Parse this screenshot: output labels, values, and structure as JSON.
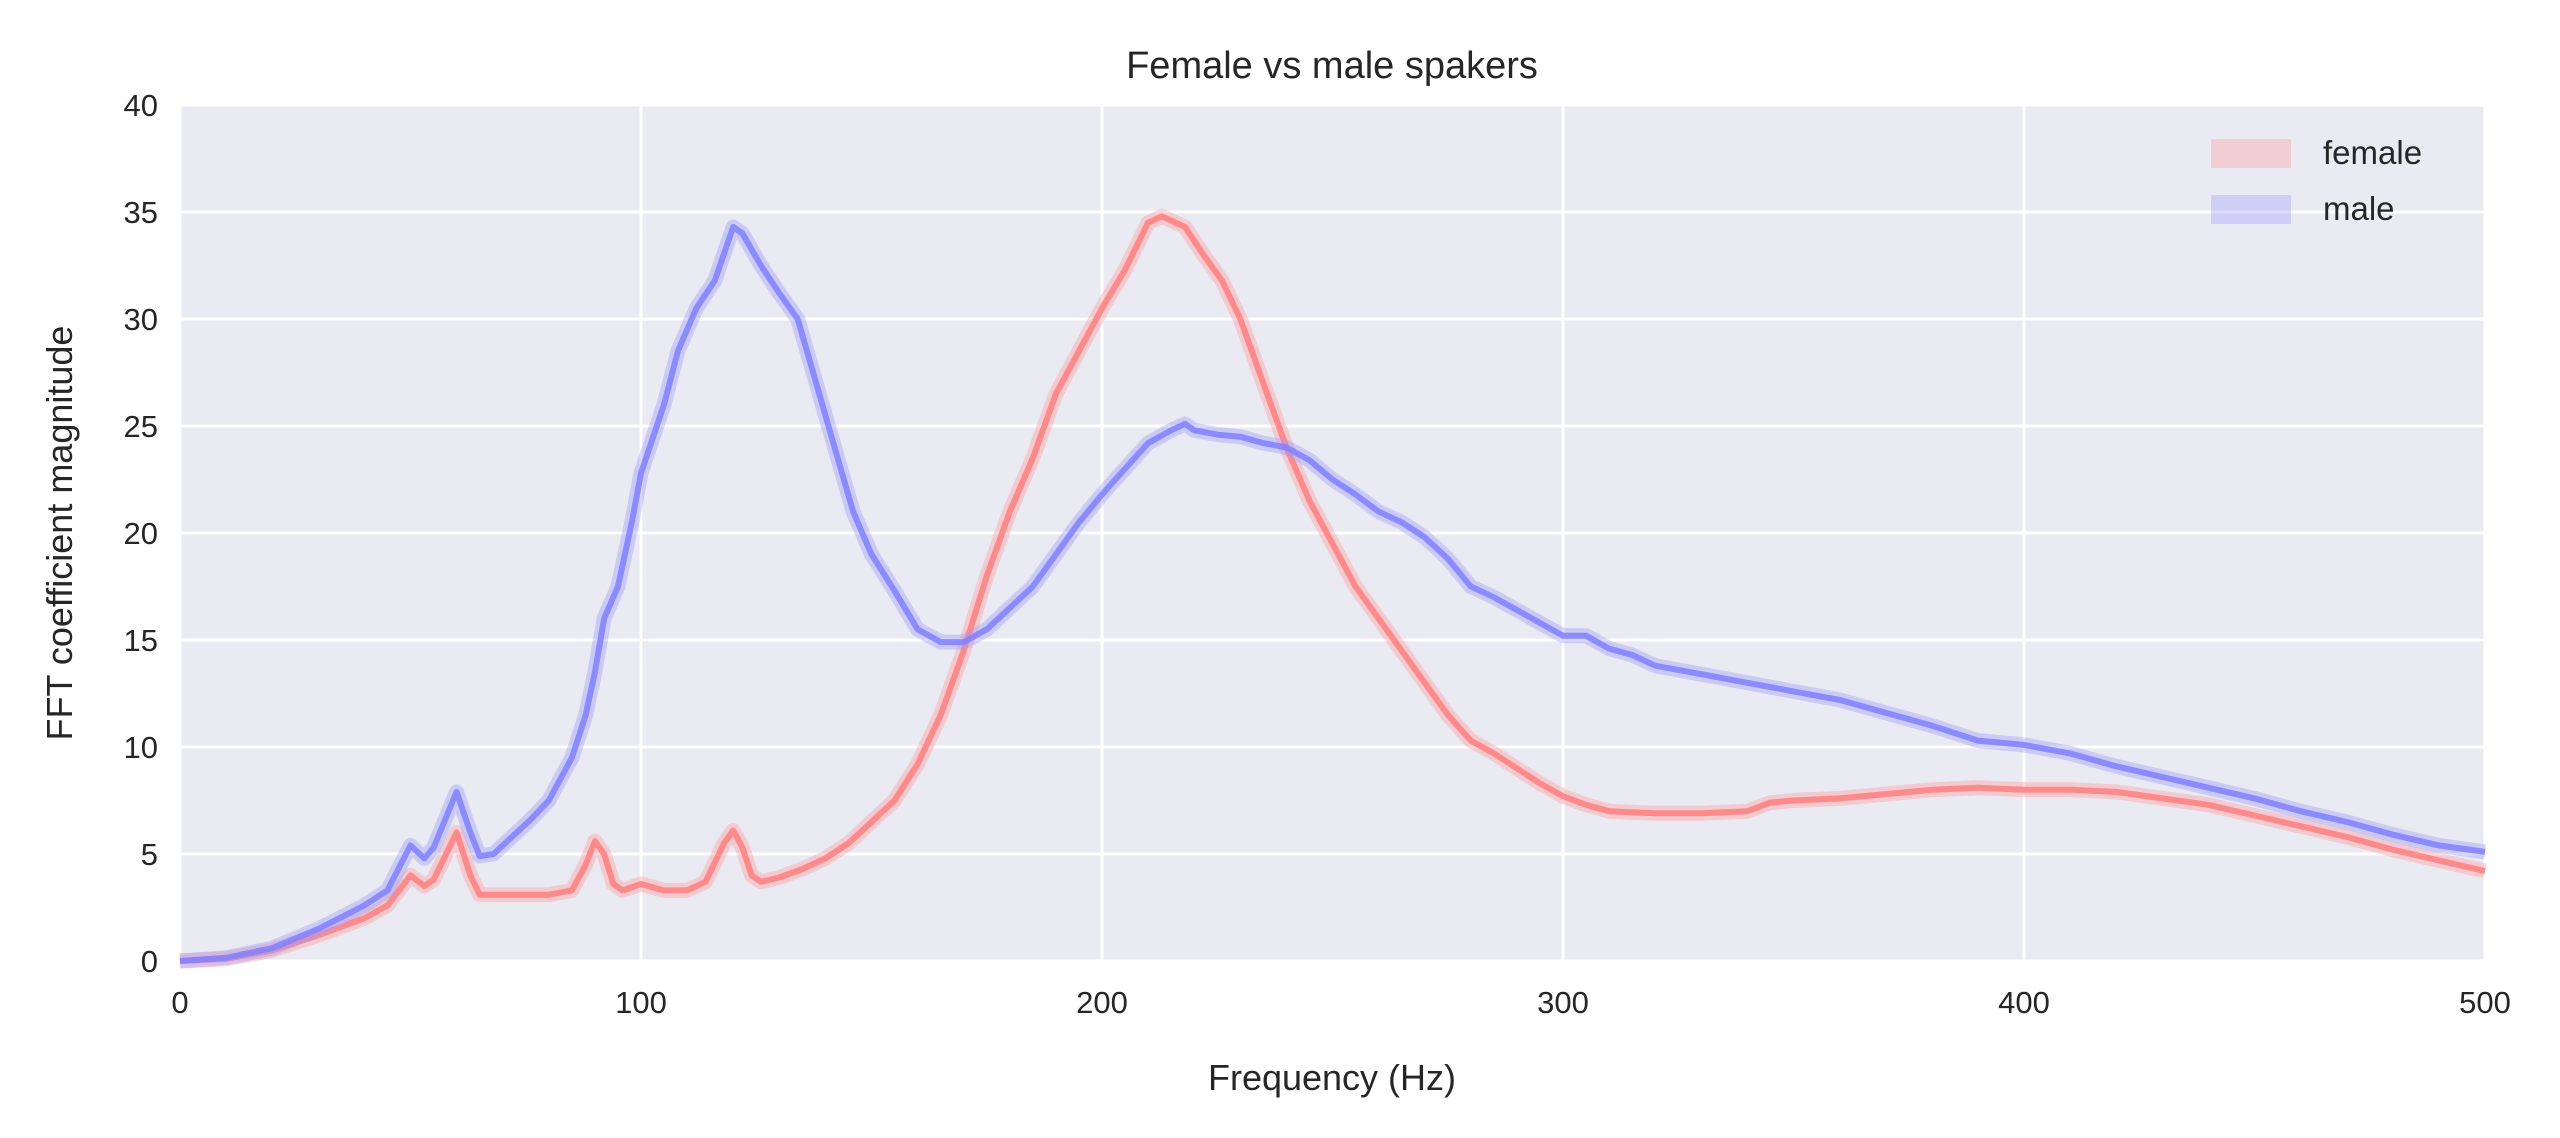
{
  "chart_data": {
    "type": "line",
    "title": "Female vs male spakers",
    "xlabel": "Frequency (Hz)",
    "ylabel": "FFT coefficient magnitude",
    "xlim": [
      0,
      500
    ],
    "ylim": [
      0,
      40
    ],
    "xticks": [
      0,
      100,
      200,
      300,
      400,
      500
    ],
    "yticks": [
      0,
      5,
      10,
      15,
      20,
      25,
      30,
      35,
      40
    ],
    "grid": true,
    "legend_position": "top-right",
    "series": [
      {
        "name": "female",
        "color": "#ff7f7f",
        "band_color": "#ff9a9a",
        "x": [
          0,
          10,
          20,
          30,
          40,
          45,
          50,
          53,
          55,
          60,
          63,
          65,
          70,
          80,
          85,
          88,
          90,
          92,
          94,
          96,
          100,
          105,
          110,
          114,
          118,
          120,
          122,
          124,
          126,
          130,
          135,
          140,
          145,
          150,
          155,
          160,
          165,
          170,
          175,
          180,
          185,
          190,
          195,
          200,
          205,
          210,
          213,
          218,
          222,
          226,
          230,
          235,
          240,
          245,
          250,
          255,
          260,
          265,
          270,
          275,
          280,
          285,
          290,
          295,
          300,
          305,
          310,
          320,
          330,
          340,
          345,
          350,
          360,
          370,
          380,
          390,
          400,
          410,
          420,
          430,
          440,
          450,
          460,
          470,
          480,
          490,
          500
        ],
        "y": [
          0,
          0.1,
          0.5,
          1.2,
          2.0,
          2.6,
          4.0,
          3.5,
          3.8,
          6.0,
          4.0,
          3.1,
          3.1,
          3.1,
          3.3,
          4.5,
          5.6,
          5.0,
          3.6,
          3.3,
          3.6,
          3.3,
          3.3,
          3.7,
          5.5,
          6.1,
          5.3,
          4.0,
          3.7,
          3.9,
          4.3,
          4.8,
          5.5,
          6.5,
          7.5,
          9.2,
          11.5,
          14.5,
          18,
          21,
          23.5,
          26.5,
          28.5,
          30.5,
          32.3,
          34.5,
          34.8,
          34.3,
          33,
          31.8,
          30,
          27,
          24,
          21.5,
          19.5,
          17.5,
          16,
          14.5,
          13,
          11.5,
          10.3,
          9.7,
          9,
          8.3,
          7.7,
          7.3,
          7.0,
          6.9,
          6.9,
          7.0,
          7.4,
          7.5,
          7.6,
          7.8,
          8.0,
          8.1,
          8.0,
          8.0,
          7.9,
          7.6,
          7.3,
          6.8,
          6.3,
          5.8,
          5.2,
          4.7,
          4.2
        ]
      },
      {
        "name": "male",
        "color": "#8080ff",
        "band_color": "#9a9aff",
        "x": [
          0,
          10,
          20,
          30,
          40,
          45,
          50,
          53,
          55,
          60,
          63,
          65,
          68,
          72,
          76,
          80,
          85,
          88,
          90,
          92,
          95,
          98,
          100,
          105,
          108,
          112,
          116,
          120,
          122,
          126,
          130,
          134,
          138,
          142,
          146,
          150,
          155,
          160,
          165,
          170,
          175,
          180,
          185,
          190,
          195,
          200,
          205,
          210,
          215,
          218,
          220,
          225,
          230,
          235,
          240,
          245,
          250,
          255,
          260,
          265,
          270,
          275,
          280,
          285,
          290,
          295,
          300,
          305,
          310,
          315,
          320,
          330,
          340,
          350,
          360,
          370,
          380,
          390,
          400,
          410,
          420,
          430,
          440,
          450,
          460,
          470,
          480,
          490,
          500
        ],
        "y": [
          0,
          0.15,
          0.6,
          1.5,
          2.6,
          3.3,
          5.4,
          4.8,
          5.3,
          7.9,
          6.0,
          4.9,
          5.0,
          5.8,
          6.6,
          7.5,
          9.5,
          11.5,
          13.5,
          16,
          17.5,
          20.5,
          22.8,
          26,
          28.5,
          30.5,
          31.8,
          34.3,
          34,
          32.5,
          31.2,
          30,
          27,
          24,
          21,
          19,
          17.3,
          15.5,
          14.9,
          14.9,
          15.5,
          16.5,
          17.5,
          19,
          20.5,
          21.8,
          23,
          24.2,
          24.8,
          25.1,
          24.8,
          24.6,
          24.5,
          24.2,
          24,
          23.4,
          22.5,
          21.8,
          21,
          20.5,
          19.8,
          18.8,
          17.5,
          17,
          16.4,
          15.8,
          15.2,
          15.2,
          14.6,
          14.3,
          13.8,
          13.4,
          13.0,
          12.6,
          12.2,
          11.6,
          11.0,
          10.3,
          10.1,
          9.7,
          9.1,
          8.6,
          8.1,
          7.6,
          7.0,
          6.5,
          5.9,
          5.4,
          5.1
        ]
      }
    ]
  }
}
